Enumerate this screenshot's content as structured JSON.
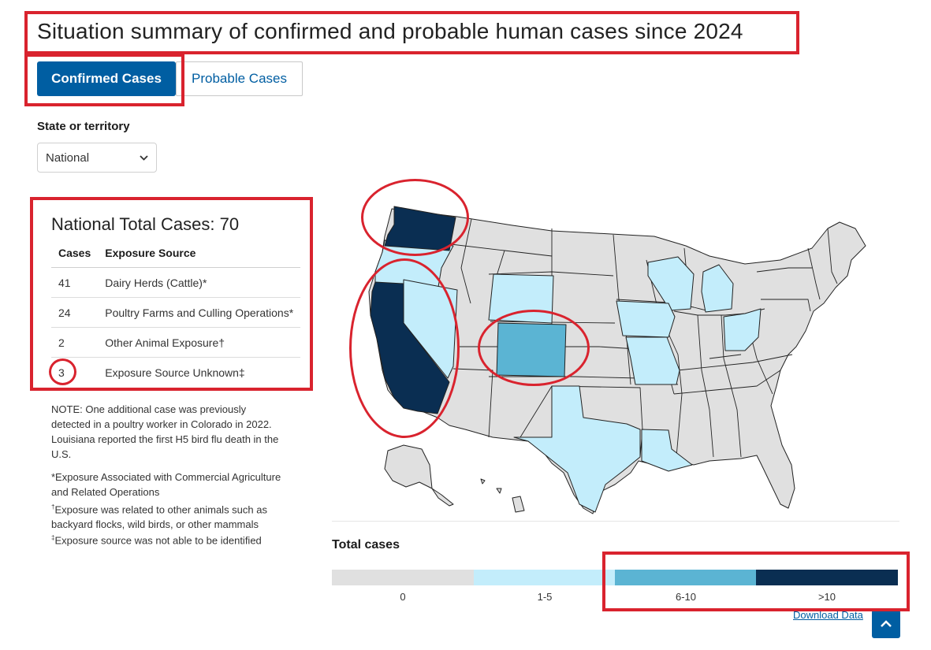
{
  "page": {
    "title": "Situation summary of confirmed and probable human cases since 2024"
  },
  "tabs": [
    {
      "label": "Confirmed Cases",
      "active": true
    },
    {
      "label": "Probable Cases",
      "active": false
    }
  ],
  "filter": {
    "label": "State or territory",
    "selected": "National"
  },
  "summary": {
    "heading": "National Total Cases: 70",
    "columns": [
      "Cases",
      "Exposure Source"
    ],
    "rows": [
      {
        "cases": "41",
        "source": "Dairy Herds (Cattle)*"
      },
      {
        "cases": "24",
        "source": "Poultry Farms and Culling Operations*"
      },
      {
        "cases": "2",
        "source": "Other Animal Exposure†"
      },
      {
        "cases": "3",
        "source": "Exposure Source Unknown‡"
      }
    ]
  },
  "notes": {
    "main": "NOTE: One additional case was previously detected in a poultry worker in Colorado in 2022. Louisiana reported the first H5 bird flu death in the U.S.",
    "star": "*Exposure Associated with Commercial Agriculture and Related Operations",
    "dagger_mark": "†",
    "dagger": "Exposure was related to other animals such as backyard flocks, wild birds, or other mammals",
    "ddagger_mark": "‡",
    "ddagger": "Exposure source was not able to be identified"
  },
  "map": {
    "categories": {
      "0": "#e0e0e0",
      "1-5": "#c3edfb",
      "6-10": "#5bb4d3",
      ">10": "#0a2e52"
    },
    "states": {
      "Washington": ">10",
      "California": ">10",
      "Colorado": "6-10",
      "Oregon": "1-5",
      "Nevada": "1-5",
      "Wyoming": "1-5",
      "Wisconsin": "1-5",
      "Michigan": "1-5",
      "Iowa": "1-5",
      "Missouri": "1-5",
      "Ohio": "1-5",
      "Texas": "1-5",
      "Louisiana": "1-5"
    }
  },
  "legend": {
    "title": "Total cases",
    "items": [
      {
        "label": "0",
        "color": "#e0e0e0"
      },
      {
        "label": "1-5",
        "color": "#c3edfb"
      },
      {
        "label": "6-10",
        "color": "#5bb4d3"
      },
      {
        "label": ">10",
        "color": "#0a2e52"
      }
    ]
  },
  "links": {
    "download": "Download Data"
  },
  "annotation_color": "#d9232e"
}
